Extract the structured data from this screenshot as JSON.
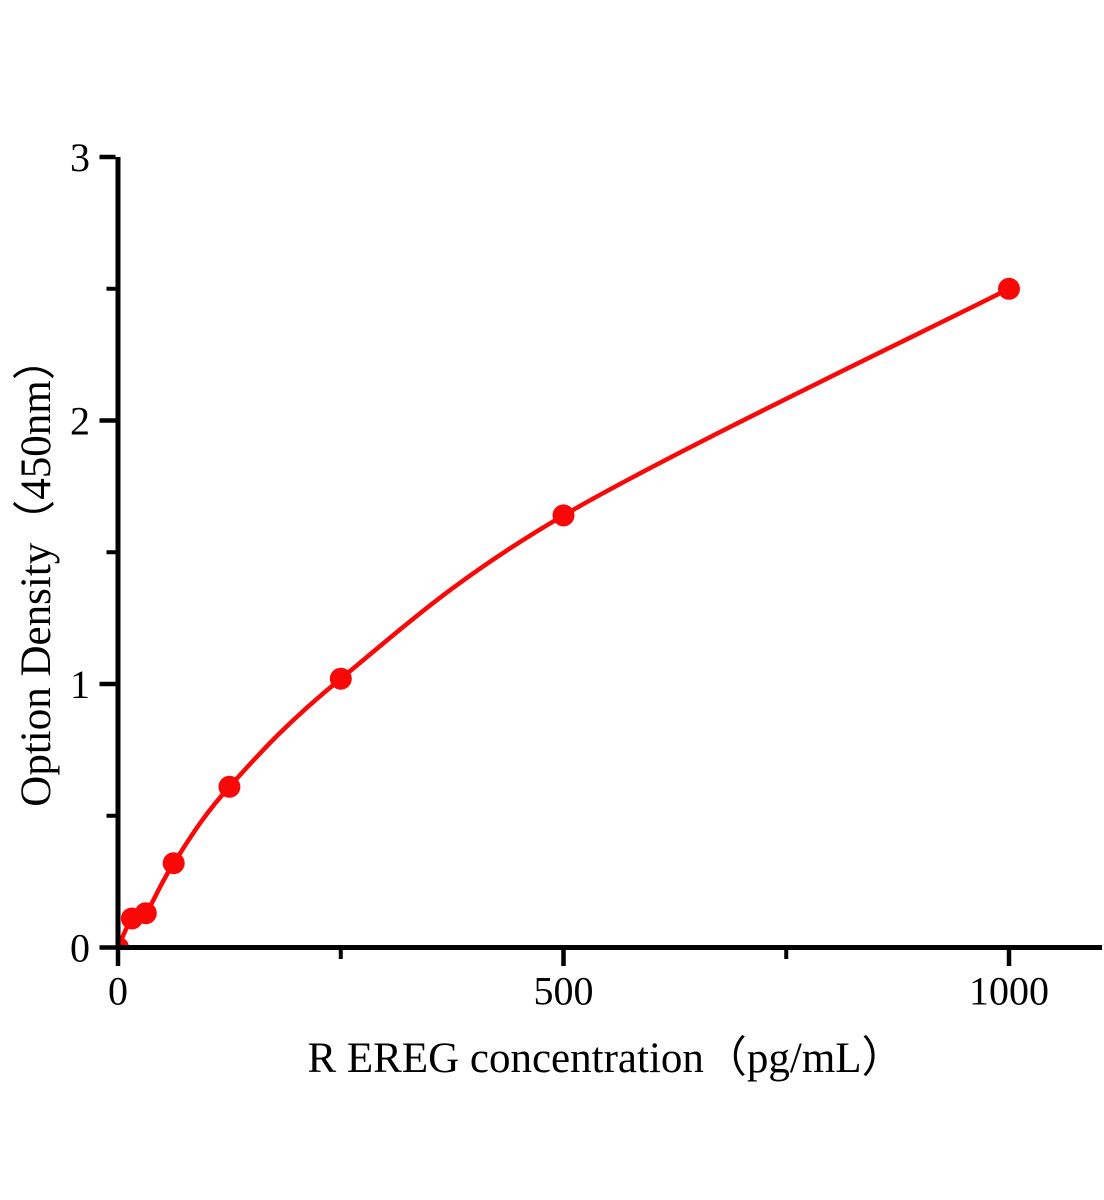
{
  "figure": {
    "background": "#ffffff"
  },
  "chart_data": {
    "type": "line",
    "title": "",
    "xlabel": "R EREG concentration（pg/mL）",
    "ylabel": "Option Density（450nm）",
    "points": [
      {
        "x": 0,
        "y": 0.0
      },
      {
        "x": 15.6,
        "y": 0.11
      },
      {
        "x": 31.2,
        "y": 0.13
      },
      {
        "x": 62.5,
        "y": 0.32
      },
      {
        "x": 125,
        "y": 0.61
      },
      {
        "x": 250,
        "y": 1.02
      },
      {
        "x": 500,
        "y": 1.64
      },
      {
        "x": 1000,
        "y": 2.5
      }
    ],
    "xlim": [
      0,
      1105
    ],
    "ylim": [
      0,
      3
    ],
    "x_axis": {
      "major_ticks": [
        {
          "value": 0,
          "label": "0"
        },
        {
          "value": 500,
          "label": "500"
        },
        {
          "value": 1000,
          "label": "1000"
        }
      ],
      "minor_ticks": [
        250,
        750
      ]
    },
    "y_axis": {
      "major_ticks": [
        {
          "value": 0,
          "label": "0"
        },
        {
          "value": 1,
          "label": "1"
        },
        {
          "value": 2,
          "label": "2"
        },
        {
          "value": 3,
          "label": "3"
        }
      ],
      "minor_ticks": [
        0.5,
        1.5,
        2.5
      ]
    },
    "line_color": "#f90808",
    "marker_color": "#f90808",
    "axis_color": "#000000",
    "grid": false,
    "legend": null
  }
}
